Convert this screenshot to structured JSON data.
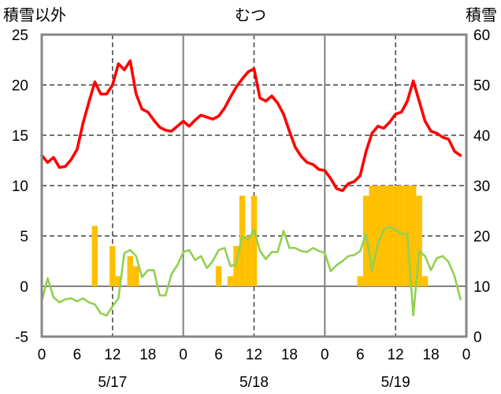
{
  "chart_data": {
    "type": "bar",
    "title": "むつ",
    "ylabel": "積雪以外",
    "y2label": "積雪",
    "ylim": [
      -5,
      25
    ],
    "y2lim": [
      0,
      60
    ],
    "y_ticks": [
      "25",
      "20",
      "15",
      "10",
      "5",
      "0",
      "-5"
    ],
    "y2_ticks": [
      "60",
      "50",
      "40",
      "30",
      "20",
      "10",
      "0"
    ],
    "x_ticks": [
      "0",
      "6",
      "12",
      "18",
      "0",
      "6",
      "12",
      "18",
      "0",
      "6",
      "12",
      "18",
      "0"
    ],
    "grid": true,
    "x": {
      "dates": [
        "5/17",
        "5/18",
        "5/19"
      ],
      "hours": [
        0,
        1,
        2,
        3,
        4,
        5,
        6,
        7,
        8,
        9,
        10,
        11,
        12,
        13,
        14,
        15,
        16,
        17,
        18,
        19,
        20,
        21,
        22,
        23
      ]
    },
    "series": [
      {
        "type": "bar",
        "color": "#FFC000",
        "values": [
          0,
          0,
          0,
          0,
          0,
          0,
          0,
          0,
          0,
          6,
          0,
          0,
          4,
          1,
          0,
          3,
          2,
          0,
          0,
          0,
          0,
          0,
          0,
          0,
          0,
          0,
          0,
          0,
          0,
          0,
          2,
          0,
          1,
          4,
          9,
          5,
          9,
          0,
          0,
          0,
          0,
          0,
          0,
          0,
          0,
          0,
          0,
          0,
          0,
          0,
          0,
          0,
          0,
          0,
          1,
          9,
          10,
          10,
          10,
          10,
          10,
          10,
          10,
          10,
          9,
          1,
          0,
          0,
          0,
          0,
          0,
          0
        ]
      },
      {
        "type": "line",
        "color": "#92D050",
        "values": [
          -1.5,
          0.8,
          -1.1,
          -1.6,
          -1.3,
          -1.2,
          -1.5,
          -1.2,
          -1.6,
          -1.8,
          -2.7,
          -2.9,
          -2.0,
          -1.2,
          3.3,
          3.6,
          3.0,
          0.9,
          1.6,
          1.6,
          -0.9,
          -0.9,
          1.2,
          2.1,
          3.4,
          3.6,
          2.6,
          3.0,
          1.8,
          2.5,
          3.6,
          3.8,
          2.0,
          2.2,
          5.0,
          4.6,
          5.6,
          3.5,
          2.7,
          3.4,
          3.4,
          5.5,
          3.8,
          3.8,
          3.5,
          3.4,
          3.8,
          3.5,
          3.3,
          1.5,
          2.1,
          2.5,
          3.0,
          3.1,
          3.5,
          5.2,
          1.5,
          4.2,
          5.6,
          5.9,
          5.6,
          5.2,
          5.2,
          -2.9,
          3.5,
          3.0,
          1.6,
          2.8,
          3.0,
          2.4,
          1.0,
          -1.3
        ]
      },
      {
        "type": "line",
        "color": "#FF0000",
        "values": [
          13.0,
          12.3,
          12.8,
          11.8,
          11.9,
          12.6,
          13.6,
          16.2,
          18.3,
          20.3,
          19.1,
          19.1,
          20.0,
          22.1,
          21.5,
          22.4,
          19.1,
          17.6,
          17.3,
          16.5,
          15.8,
          15.5,
          15.4,
          15.9,
          16.4,
          15.9,
          16.5,
          17.0,
          16.8,
          16.6,
          16.9,
          17.7,
          18.8,
          19.8,
          20.6,
          21.3,
          21.6,
          18.7,
          18.4,
          18.9,
          18.2,
          17.1,
          15.4,
          13.8,
          12.9,
          12.3,
          12.1,
          11.6,
          11.5,
          10.7,
          9.7,
          9.5,
          10.2,
          10.4,
          11.0,
          13.4,
          15.2,
          15.9,
          15.7,
          16.3,
          17.1,
          17.3,
          18.4,
          20.4,
          18.4,
          16.4,
          15.4,
          15.2,
          14.8,
          14.6,
          13.4,
          13.0
        ]
      }
    ]
  }
}
